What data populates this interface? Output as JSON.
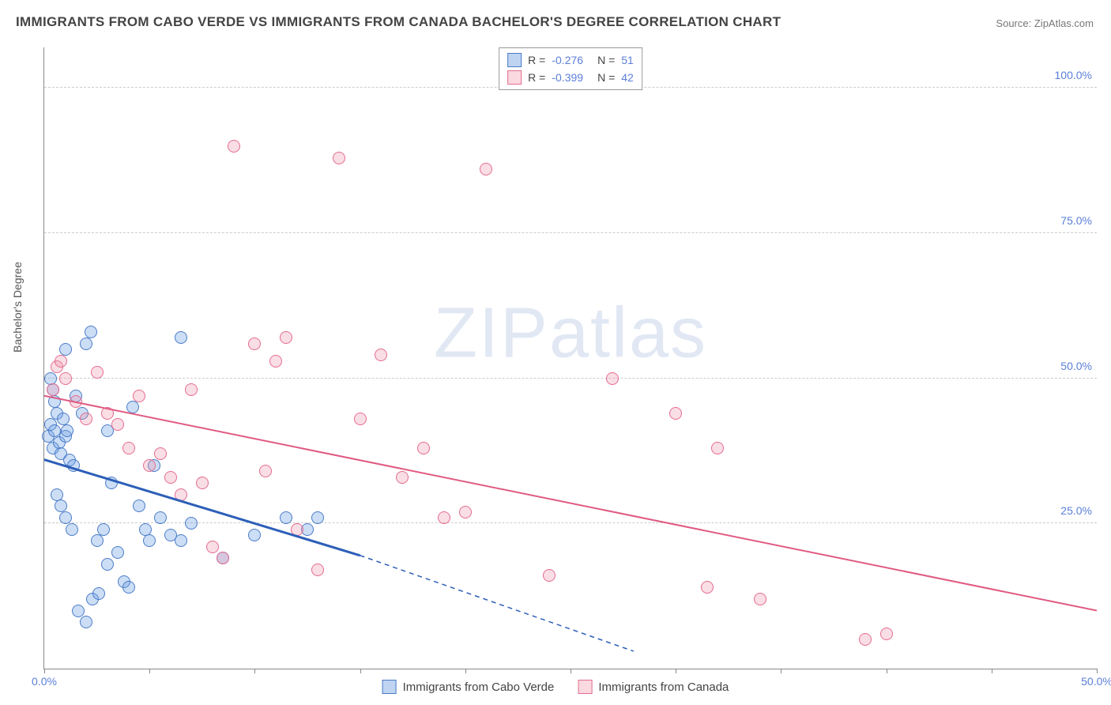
{
  "title": "IMMIGRANTS FROM CABO VERDE VS IMMIGRANTS FROM CANADA BACHELOR'S DEGREE CORRELATION CHART",
  "source_label": "Source:",
  "source_name": "ZipAtlas.com",
  "ylabel": "Bachelor's Degree",
  "watermark": "ZIPatlas",
  "chart": {
    "type": "scatter",
    "xlim": [
      0,
      50
    ],
    "ylim": [
      0,
      107
    ],
    "xticks": [
      0,
      5,
      10,
      15,
      20,
      25,
      30,
      35,
      40,
      45,
      50
    ],
    "xtick_labels": {
      "0": "0.0%",
      "50": "50.0%"
    },
    "yticks": [
      25,
      50,
      75,
      100
    ],
    "ytick_labels": {
      "25": "25.0%",
      "50": "50.0%",
      "75": "75.0%",
      "100": "100.0%"
    },
    "background_color": "#ffffff",
    "grid_color": "#cccccc",
    "axis_color": "#888888",
    "marker_radius": 8,
    "series": [
      {
        "name": "Immigrants from Cabo Verde",
        "color_fill": "rgba(110,160,225,0.35)",
        "color_stroke": "#4a7bc8",
        "R": "-0.276",
        "N": "51",
        "trend": {
          "x1": 0,
          "y1": 36,
          "x2": 15,
          "y2": 19.5,
          "dash_to_x": 28,
          "dash_to_y": 3,
          "stroke": "#2d5fb8",
          "width": 3
        },
        "points": [
          [
            0.2,
            40
          ],
          [
            0.3,
            42
          ],
          [
            0.4,
            38
          ],
          [
            0.5,
            41
          ],
          [
            0.6,
            44
          ],
          [
            0.7,
            39
          ],
          [
            0.8,
            37
          ],
          [
            0.9,
            43
          ],
          [
            1.0,
            40
          ],
          [
            1.1,
            41
          ],
          [
            0.4,
            48
          ],
          [
            0.5,
            46
          ],
          [
            1.2,
            36
          ],
          [
            1.4,
            35
          ],
          [
            0.6,
            30
          ],
          [
            0.8,
            28
          ],
          [
            1.0,
            26
          ],
          [
            1.3,
            24
          ],
          [
            1.6,
            10
          ],
          [
            2.0,
            8
          ],
          [
            2.0,
            56
          ],
          [
            2.2,
            58
          ],
          [
            2.5,
            22
          ],
          [
            2.8,
            24
          ],
          [
            3.0,
            41
          ],
          [
            3.2,
            32
          ],
          [
            3.5,
            20
          ],
          [
            3.8,
            15
          ],
          [
            4.0,
            14
          ],
          [
            4.2,
            45
          ],
          [
            4.5,
            28
          ],
          [
            4.8,
            24
          ],
          [
            5.0,
            22
          ],
          [
            2.3,
            12
          ],
          [
            2.6,
            13
          ],
          [
            3.0,
            18
          ],
          [
            1.8,
            44
          ],
          [
            1.5,
            47
          ],
          [
            1.0,
            55
          ],
          [
            0.3,
            50
          ],
          [
            6.5,
            57
          ],
          [
            5.2,
            35
          ],
          [
            5.5,
            26
          ],
          [
            6.0,
            23
          ],
          [
            6.5,
            22
          ],
          [
            7.0,
            25
          ],
          [
            8.5,
            19
          ],
          [
            10.0,
            23
          ],
          [
            11.5,
            26
          ],
          [
            12.5,
            24
          ],
          [
            13.0,
            26
          ]
        ]
      },
      {
        "name": "Immigrants from Canada",
        "color_fill": "rgba(240,145,170,0.30)",
        "color_stroke": "#e46b8f",
        "R": "-0.399",
        "N": "42",
        "trend": {
          "x1": 0,
          "y1": 47,
          "x2": 50,
          "y2": 10,
          "stroke": "#e05a82",
          "width": 2
        },
        "points": [
          [
            0.4,
            48
          ],
          [
            0.6,
            52
          ],
          [
            0.8,
            53
          ],
          [
            1.0,
            50
          ],
          [
            1.5,
            46
          ],
          [
            2.0,
            43
          ],
          [
            2.5,
            51
          ],
          [
            3.0,
            44
          ],
          [
            3.5,
            42
          ],
          [
            4.0,
            38
          ],
          [
            4.5,
            47
          ],
          [
            5.0,
            35
          ],
          [
            5.5,
            37
          ],
          [
            6.0,
            33
          ],
          [
            6.5,
            30
          ],
          [
            7.0,
            48
          ],
          [
            7.5,
            32
          ],
          [
            8.0,
            21
          ],
          [
            8.5,
            19
          ],
          [
            9.0,
            90
          ],
          [
            10.0,
            56
          ],
          [
            10.5,
            34
          ],
          [
            11.0,
            53
          ],
          [
            11.5,
            57
          ],
          [
            12.0,
            24
          ],
          [
            13.0,
            17
          ],
          [
            14.0,
            88
          ],
          [
            15.0,
            43
          ],
          [
            16.0,
            54
          ],
          [
            17.0,
            33
          ],
          [
            18.0,
            38
          ],
          [
            19.0,
            26
          ],
          [
            20.0,
            27
          ],
          [
            21.0,
            86
          ],
          [
            24.0,
            16
          ],
          [
            27.0,
            50
          ],
          [
            30.0,
            44
          ],
          [
            32.0,
            38
          ],
          [
            34.0,
            12
          ],
          [
            39.0,
            5
          ],
          [
            40.0,
            6
          ],
          [
            31.5,
            14
          ]
        ]
      }
    ]
  },
  "legend_top": [
    {
      "swatch": "blue",
      "R_label": "R =",
      "R": "-0.276",
      "N_label": "N =",
      "N": "51"
    },
    {
      "swatch": "pink",
      "R_label": "R =",
      "R": "-0.399",
      "N_label": "N =",
      "42": "42",
      "N_val": "42"
    }
  ],
  "legend_bottom": [
    {
      "swatch": "blue",
      "label": "Immigrants from Cabo Verde"
    },
    {
      "swatch": "pink",
      "label": "Immigrants from Canada"
    }
  ]
}
